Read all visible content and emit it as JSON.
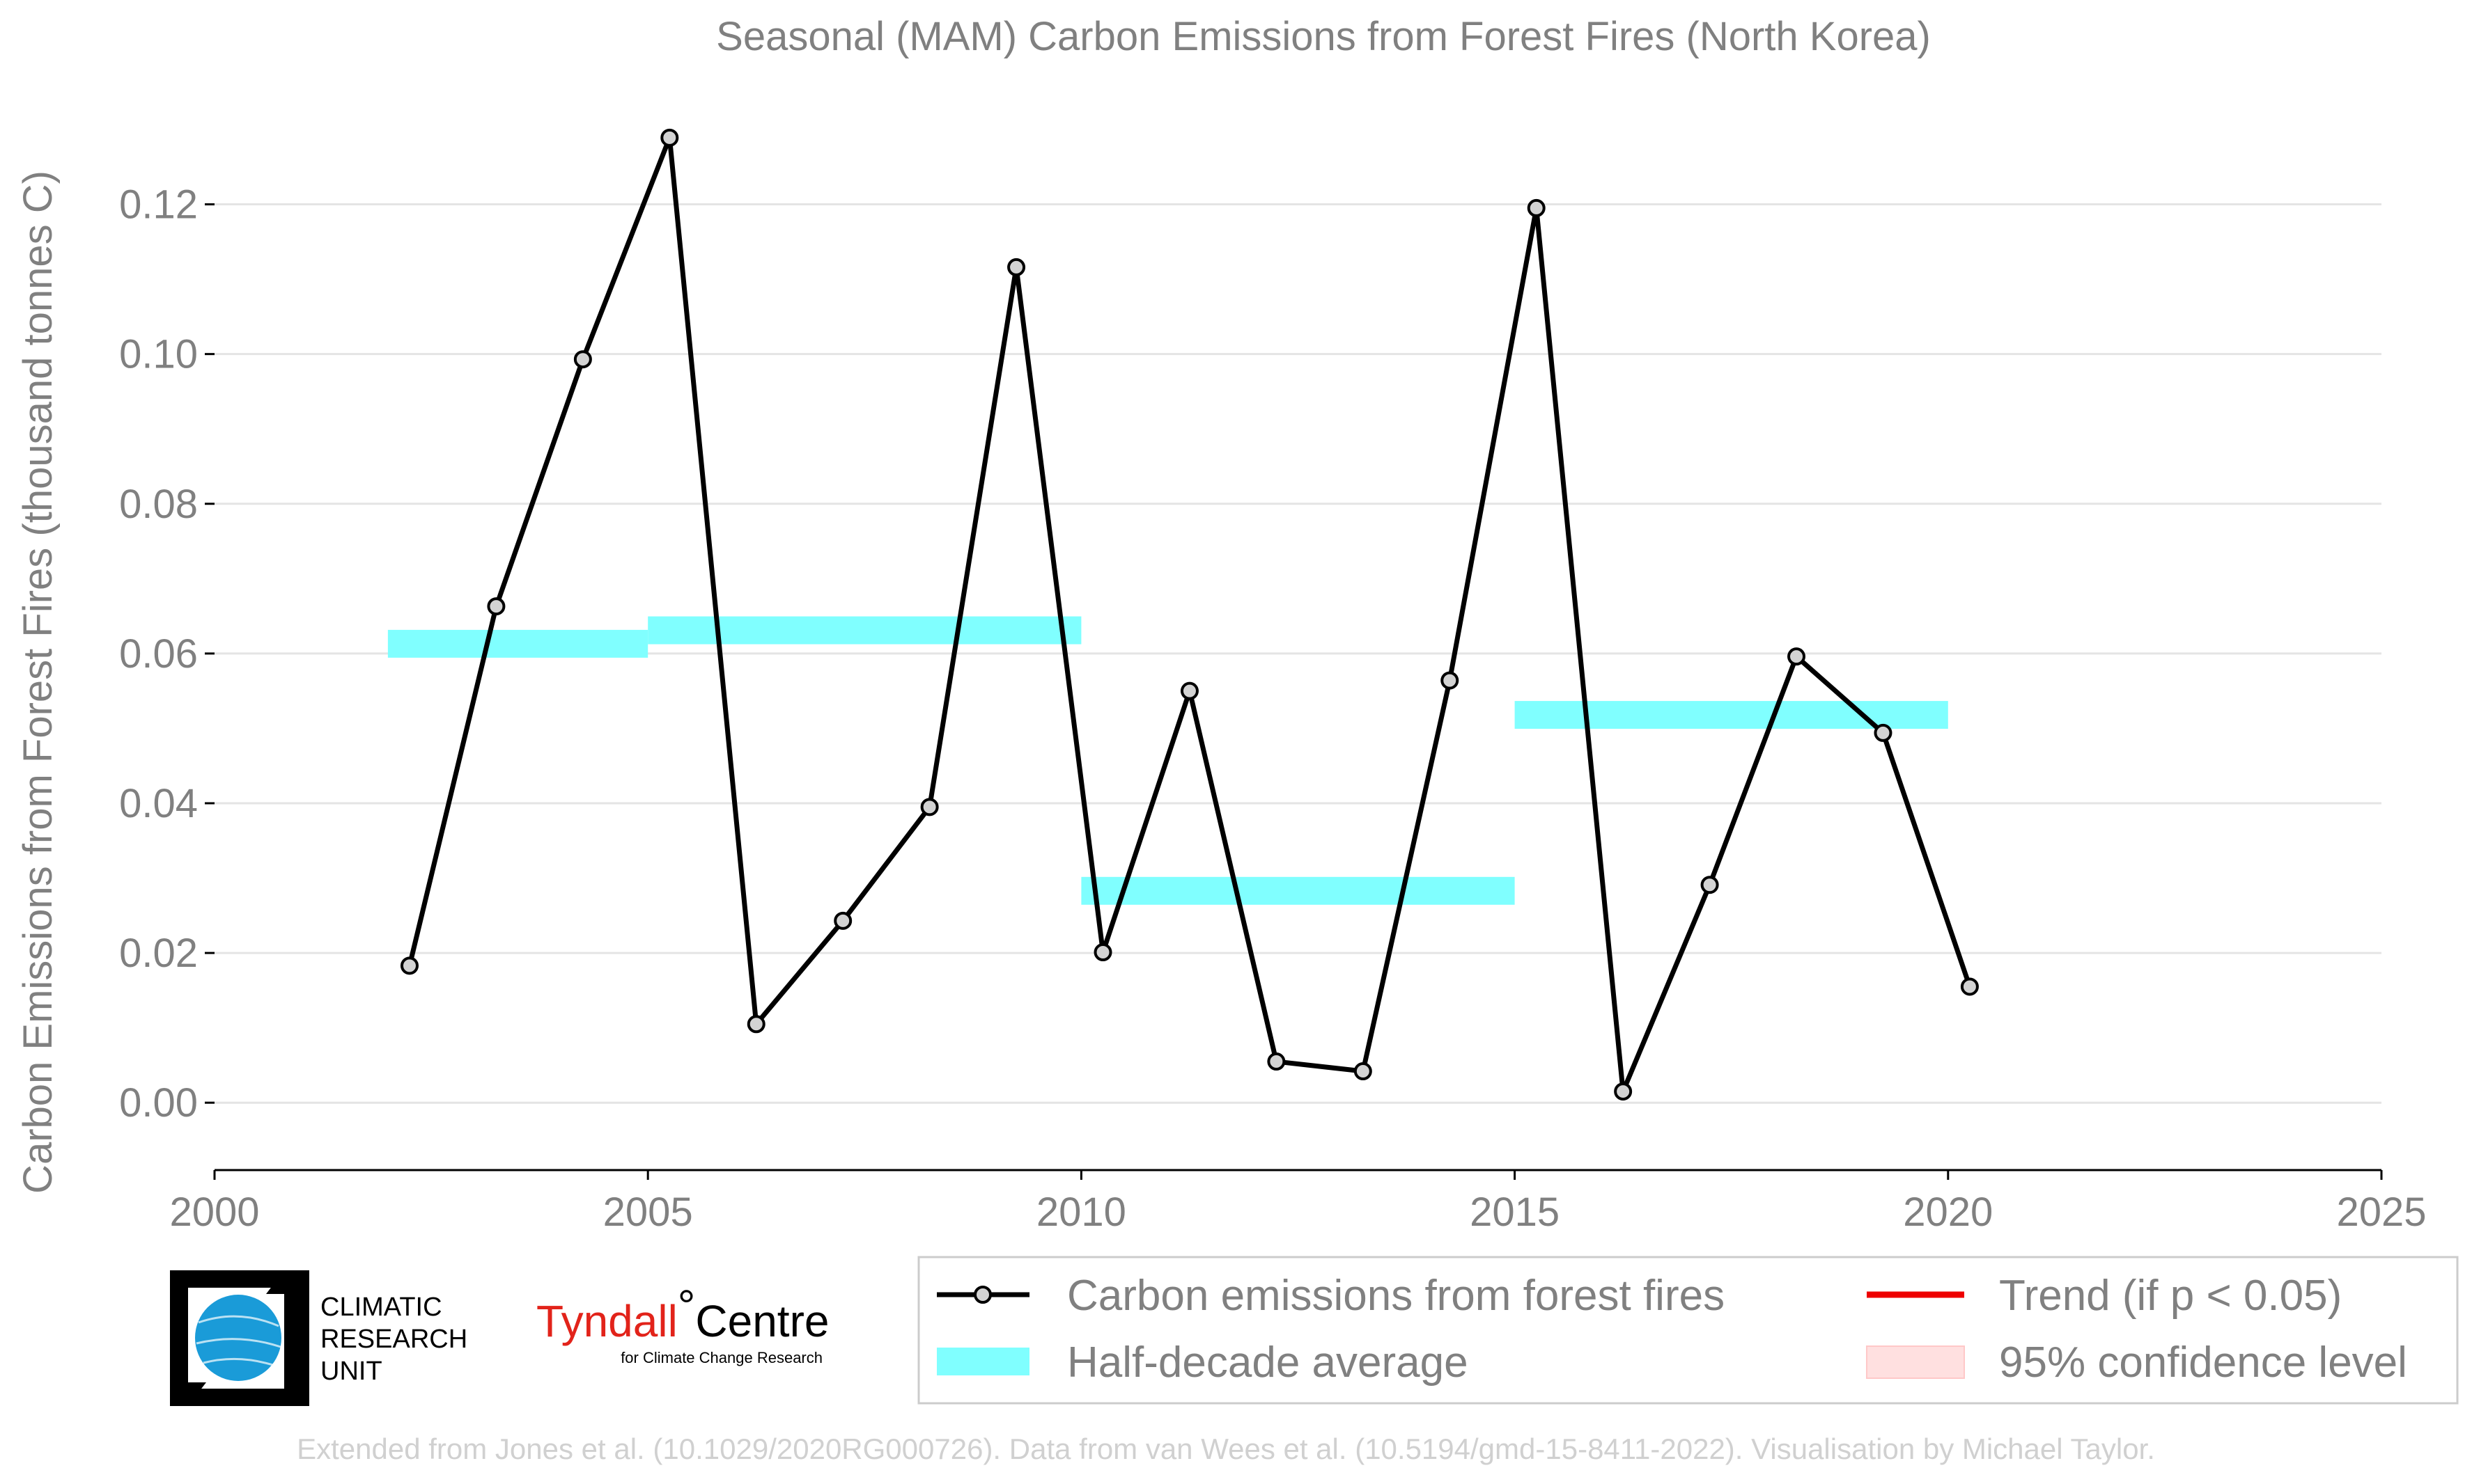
{
  "chart_data": {
    "type": "line",
    "title": "Seasonal (MAM) Carbon Emissions from Forest Fires (North Korea)",
    "ylabel": "Carbon Emissions from Forest Fires (thousand tonnes C)",
    "xlabel": "",
    "xlim": [
      2000,
      2025
    ],
    "ylim": [
      -0.009,
      0.13
    ],
    "x_ticks": [
      2000,
      2005,
      2010,
      2015,
      2020,
      2025
    ],
    "y_ticks": [
      0.0,
      0.02,
      0.04,
      0.06,
      0.08,
      0.1,
      0.12
    ],
    "y_tick_labels": [
      "0.00",
      "0.02",
      "0.04",
      "0.06",
      "0.08",
      "0.10",
      "0.12"
    ],
    "grid": "horizontal",
    "legend_placement": "bottom",
    "series": [
      {
        "name": "Carbon emissions from forest fires",
        "color": "#000000",
        "marker_fill": "#d3d3d3",
        "x": [
          2002.25,
          2003.25,
          2004.25,
          2005.25,
          2006.25,
          2007.25,
          2008.25,
          2009.25,
          2010.25,
          2011.25,
          2012.25,
          2013.25,
          2014.25,
          2015.25,
          2016.25,
          2017.25,
          2018.25,
          2019.25,
          2020.25
        ],
        "y": [
          0.0183,
          0.0663,
          0.0993,
          0.1289,
          0.0105,
          0.0243,
          0.0395,
          0.1116,
          0.0201,
          0.055,
          0.0055,
          0.0042,
          0.0564,
          0.1195,
          0.0015,
          0.0291,
          0.0596,
          0.0494,
          0.0155
        ]
      }
    ],
    "half_decade_averages": {
      "name": "Half-decade average",
      "color": "#80ffff",
      "segments": [
        {
          "x_start": 2002,
          "x_end": 2005,
          "y": 0.0613
        },
        {
          "x_start": 2005,
          "x_end": 2010,
          "y": 0.0631
        },
        {
          "x_start": 2010,
          "x_end": 2015,
          "y": 0.0283
        },
        {
          "x_start": 2015,
          "x_end": 2020,
          "y": 0.0518
        }
      ]
    },
    "legend": [
      {
        "label": "Carbon emissions from forest fires",
        "kind": "line-marker",
        "color": "#000000"
      },
      {
        "label": "Trend (if p < 0.05)",
        "kind": "line",
        "color": "#ee0000"
      },
      {
        "label": "Half-decade average",
        "kind": "band",
        "color": "#80ffff"
      },
      {
        "label": "95% confidence level",
        "kind": "band",
        "color": "#ffe0e0"
      }
    ]
  },
  "logos": {
    "cru": {
      "lines": [
        "CLIMATIC",
        "RESEARCH",
        "UNIT"
      ]
    },
    "tyndall": {
      "main": "Tyndall",
      "degree": "°",
      "centre": "Centre",
      "sub": "for Climate Change Research"
    }
  },
  "footer": "Extended from Jones et al. (10.1029/2020RG000726). Data from van Wees et al. (10.5194/gmd-15-8411-2022). Visualisation by Michael Taylor."
}
